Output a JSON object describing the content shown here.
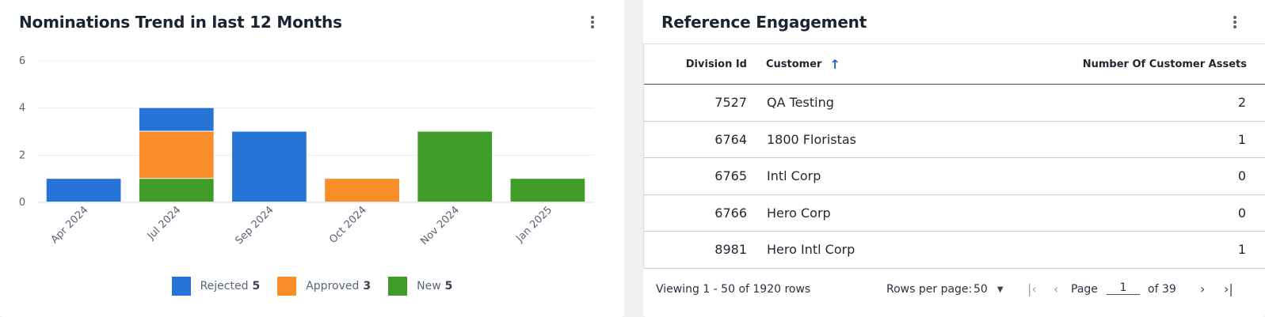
{
  "left_card": {
    "title": "Nominations Trend in last 12 Months",
    "menu_icon": "kebab-vertical-icon"
  },
  "chart_data": {
    "type": "bar",
    "stacked": true,
    "categories": [
      "Apr 2024",
      "Jul 2024",
      "Sep 2024",
      "Oct 2024",
      "Nov 2024",
      "Jan 2025"
    ],
    "series": [
      {
        "name": "New",
        "color": "#3f9c26",
        "values": [
          0,
          1,
          0,
          0,
          3,
          1
        ]
      },
      {
        "name": "Approved",
        "color": "#f98d28",
        "values": [
          0,
          2,
          0,
          1,
          0,
          0
        ]
      },
      {
        "name": "Rejected",
        "color": "#2774d8",
        "values": [
          1,
          1,
          3,
          0,
          0,
          0
        ]
      }
    ],
    "yticks": [
      "0",
      "2",
      "4",
      "6"
    ],
    "ylim": [
      0,
      6
    ],
    "grid": true,
    "legend_position": "bottom-center"
  },
  "legend": [
    {
      "label": "Rejected",
      "count": "5",
      "color": "#2774d8"
    },
    {
      "label": "Approved",
      "count": "3",
      "color": "#f98d28"
    },
    {
      "label": "New",
      "count": "5",
      "color": "#3f9c26"
    }
  ],
  "right_card": {
    "title": "Reference Engagement",
    "menu_icon": "kebab-vertical-icon",
    "columns": {
      "division": "Division Id",
      "customer": "Customer",
      "assets": "Number Of Customer Assets",
      "sort_icon": "↑"
    },
    "rows": [
      {
        "division": "7527",
        "customer": "QA Testing",
        "assets": "2"
      },
      {
        "division": "6764",
        "customer": "1800 Floristas",
        "assets": "1"
      },
      {
        "division": "6765",
        "customer": "Intl Corp",
        "assets": "0"
      },
      {
        "division": "6766",
        "customer": "Hero Corp",
        "assets": "0"
      },
      {
        "division": "8981",
        "customer": "Hero Intl Corp",
        "assets": "1"
      }
    ],
    "pager": {
      "viewing": "Viewing 1 - 50 of 1920 rows",
      "rows_per_page_label": "Rows per page:",
      "rows_per_page_value": "50",
      "page_label": "Page",
      "page_value": "1",
      "of_label": "of 39"
    }
  }
}
